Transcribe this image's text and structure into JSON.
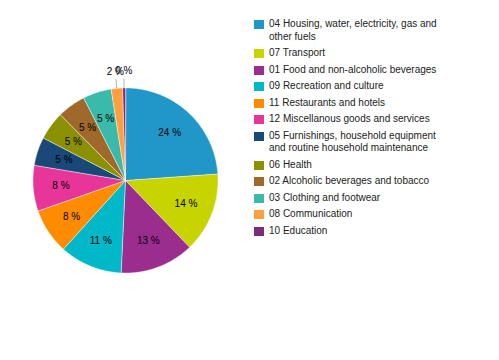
{
  "chart_data": {
    "type": "pie",
    "categories": [
      "04 Housing, water, electricity, gas and\nother fuels",
      "07 Transport",
      "01 Food and non-alcoholic beverages",
      "09 Recreation and culture",
      "11 Restaurants and hotels",
      "12 Miscellanous goods and services",
      "05 Furnishings, household equipment\nand routine household maintenance",
      "06 Health",
      "02 Alcoholic beverages and tobacco",
      "03 Clothing and footwear",
      "08 Communication",
      "10 Education"
    ],
    "values": [
      24,
      14,
      13,
      11,
      8,
      8,
      5,
      5,
      5,
      5,
      2,
      0.5
    ],
    "value_labels": [
      "24 %",
      "14 %",
      "13 %",
      "11 %",
      "8 %",
      "8 %",
      "5 %",
      "5 %",
      "5 %",
      "5 %",
      "2 %",
      "0 %"
    ],
    "colors": [
      "#2196C8",
      "#C8D400",
      "#9B2D8E",
      "#00B8C8",
      "#FF8C00",
      "#E8359A",
      "#1A4878",
      "#8B9000",
      "#A0682A",
      "#3ABAAA",
      "#FFA040",
      "#7B2D7B"
    ],
    "data_labels": true,
    "legend": "right"
  }
}
